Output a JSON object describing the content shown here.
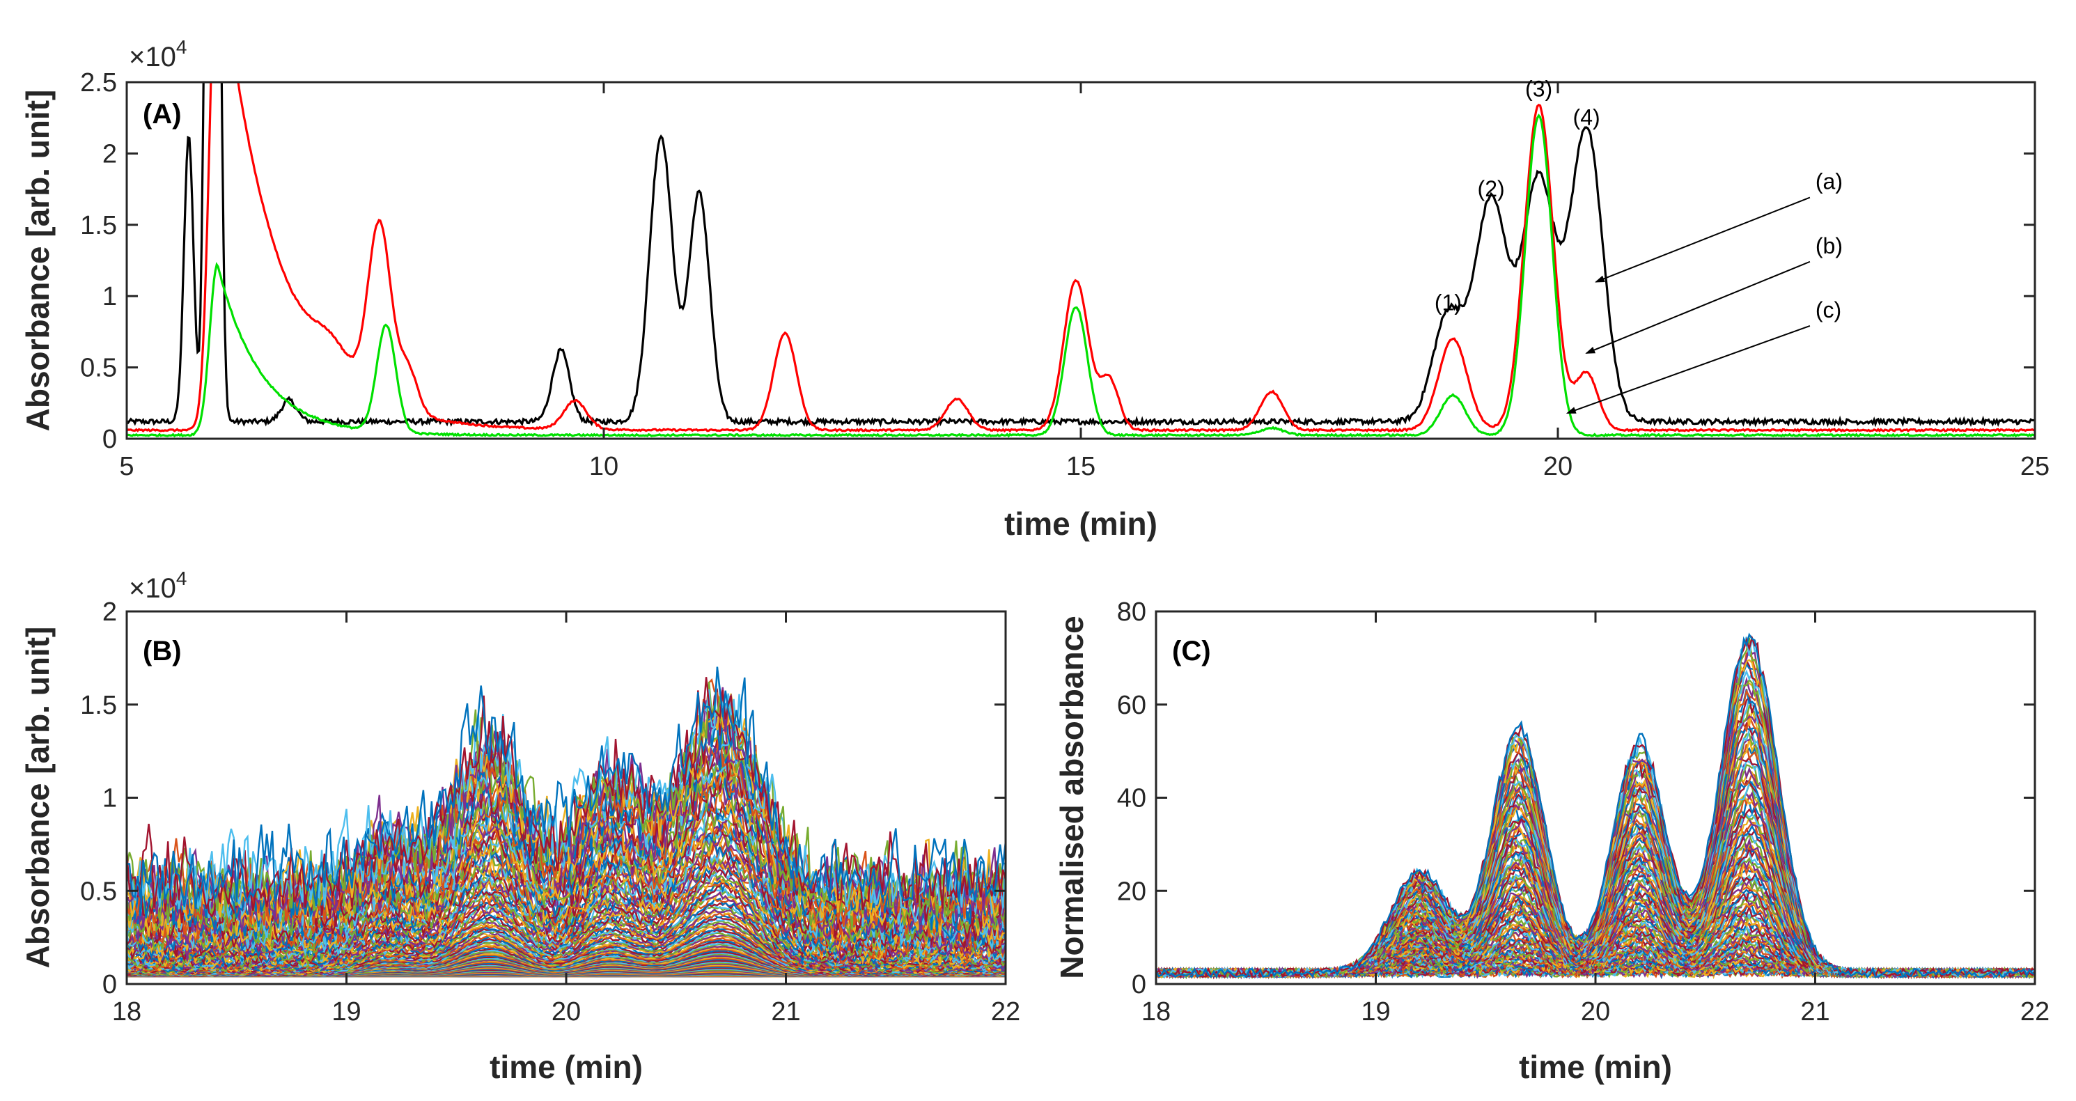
{
  "chart_data": [
    {
      "type": "line",
      "panel_label": "(A)",
      "xlabel": "time (min)",
      "ylabel": "Absorbance [arb. unit]",
      "xlim": [
        5,
        25
      ],
      "ylim": [
        0,
        25000
      ],
      "xticks": [
        "5",
        "10",
        "15",
        "20",
        "25"
      ],
      "yticks": [
        "0",
        "0.5",
        "1",
        "1.5",
        "2",
        "2.5"
      ],
      "y_multiplier": "×10",
      "y_multiplier_exp": "4",
      "grid": false,
      "peak_labels": [
        {
          "text": "(1)",
          "x": 18.85,
          "y": 9000
        },
        {
          "text": "(2)",
          "x": 19.3,
          "y": 17000
        },
        {
          "text": "(3)",
          "x": 19.8,
          "y": 24000
        },
        {
          "text": "(4)",
          "x": 20.3,
          "y": 22000
        }
      ],
      "curve_labels": [
        {
          "text": "(a)",
          "x": 22.7,
          "y": 17500,
          "target_x": 20.4,
          "target_y": 11000
        },
        {
          "text": "(b)",
          "x": 22.7,
          "y": 13000,
          "target_x": 20.3,
          "target_y": 6000
        },
        {
          "text": "(c)",
          "x": 22.7,
          "y": 8500,
          "target_x": 20.1,
          "target_y": 1800
        }
      ],
      "series": [
        {
          "color": "#000000",
          "baseline": 1200,
          "peaks": [
            [
              5.65,
              20000,
              0.05
            ],
            [
              5.85,
              45000,
              0.04
            ],
            [
              5.95,
              45000,
              0.04
            ],
            [
              6.7,
              1500,
              0.08
            ],
            [
              9.55,
              5000,
              0.09
            ],
            [
              10.6,
              20000,
              0.12
            ],
            [
              11.0,
              16000,
              0.11
            ],
            [
              18.85,
              7500,
              0.16
            ],
            [
              19.3,
              15500,
              0.17
            ],
            [
              19.8,
              17000,
              0.17
            ],
            [
              20.3,
              20500,
              0.17
            ]
          ]
        },
        {
          "color": "#ff0000",
          "baseline": 600,
          "decay": [
            5.95,
            35000,
            0.6
          ],
          "peaks": [
            [
              7.65,
              12500,
              0.12
            ],
            [
              7.95,
              3000,
              0.1
            ],
            [
              7.15,
              2000,
              0.2
            ],
            [
              9.7,
              2000,
              0.12
            ],
            [
              11.9,
              6800,
              0.12
            ],
            [
              13.7,
              2200,
              0.12
            ],
            [
              14.95,
              10500,
              0.13
            ],
            [
              15.3,
              3500,
              0.1
            ],
            [
              17.0,
              2700,
              0.12
            ],
            [
              18.9,
              6400,
              0.15
            ],
            [
              19.8,
              22800,
              0.15
            ],
            [
              20.3,
              4000,
              0.12
            ]
          ]
        },
        {
          "color": "#00e000",
          "baseline": 250,
          "decay": [
            5.95,
            12000,
            0.45
          ],
          "peaks": [
            [
              7.72,
              7500,
              0.1
            ],
            [
              14.95,
              9000,
              0.12
            ],
            [
              17.0,
              500,
              0.12
            ],
            [
              18.9,
              2800,
              0.13
            ],
            [
              19.8,
              22400,
              0.14
            ]
          ]
        }
      ]
    },
    {
      "type": "line",
      "panel_label": "(B)",
      "xlabel": "time (min)",
      "ylabel": "Absorbance [arb. unit]",
      "xlim": [
        18,
        22
      ],
      "ylim": [
        0,
        20000
      ],
      "xticks": [
        "18",
        "19",
        "20",
        "21",
        "22"
      ],
      "yticks": [
        "0",
        "0.5",
        "1",
        "1.5",
        "2"
      ],
      "y_multiplier": "×10",
      "y_multiplier_exp": "4",
      "grid": false,
      "series_count": 120,
      "peaks": [
        [
          19.2,
          2500,
          0.13
        ],
        [
          19.65,
          7800,
          0.15
        ],
        [
          20.2,
          5800,
          0.14
        ],
        [
          20.7,
          10000,
          0.17
        ]
      ],
      "noise_max": 9000
    },
    {
      "type": "line",
      "panel_label": "(C)",
      "xlabel": "time (min)",
      "ylabel": "Normalised absorbance",
      "xlim": [
        18,
        22
      ],
      "ylim": [
        0,
        80
      ],
      "xticks": [
        "18",
        "19",
        "20",
        "21",
        "22"
      ],
      "yticks": [
        "0",
        "20",
        "40",
        "60",
        "80"
      ],
      "grid": false,
      "series_count": 120,
      "peaks": [
        [
          19.2,
          22,
          0.13
        ],
        [
          19.65,
          53,
          0.12
        ],
        [
          20.2,
          50,
          0.12
        ],
        [
          20.7,
          73,
          0.13
        ]
      ],
      "baseline": 3
    }
  ]
}
